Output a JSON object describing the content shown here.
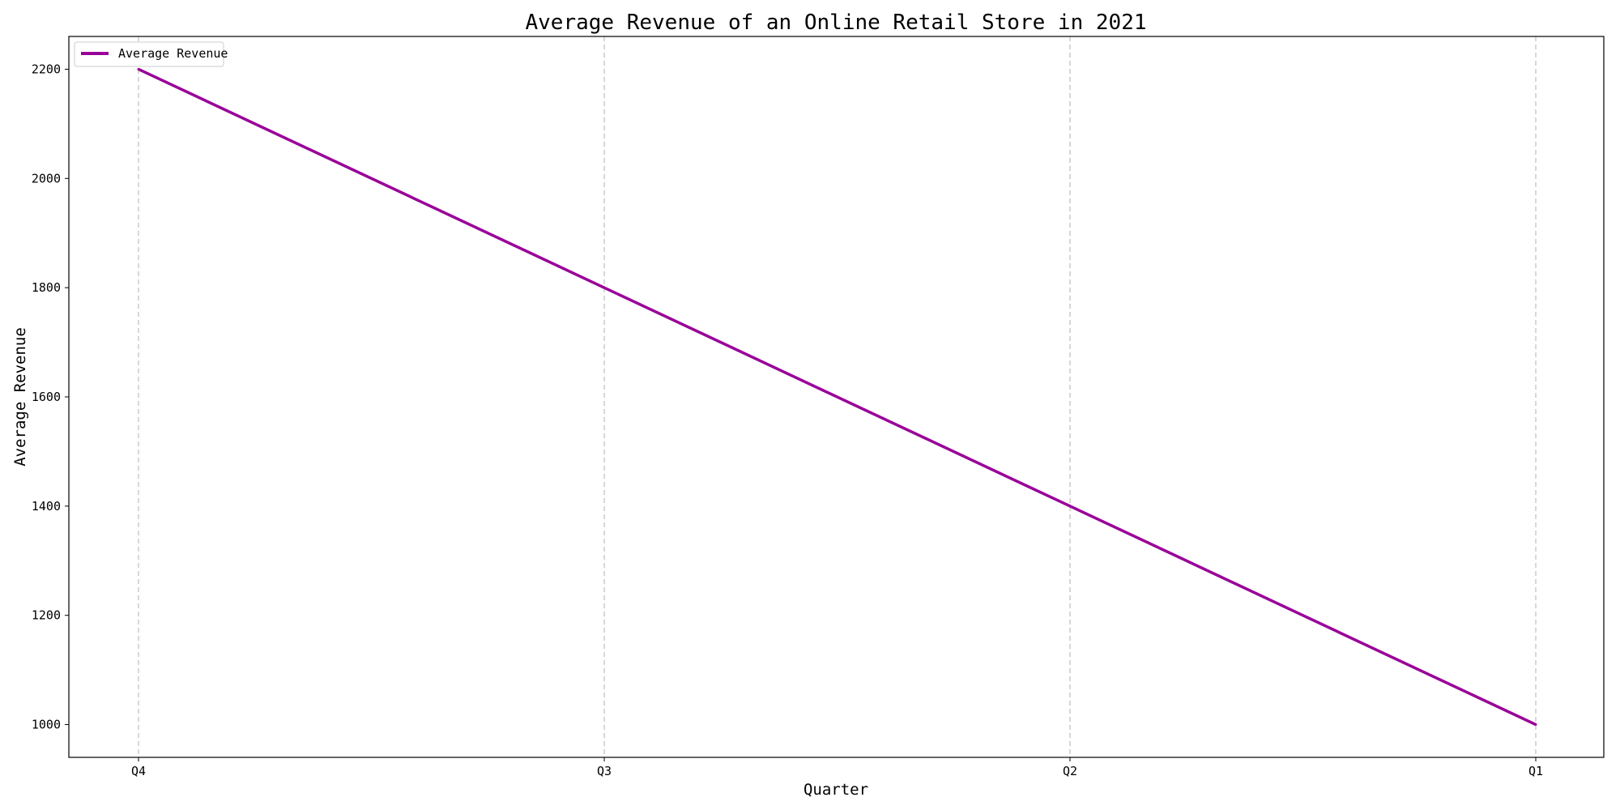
{
  "chart_data": {
    "type": "line",
    "title": "Average Revenue of an Online Retail Store in 2021",
    "xlabel": "Quarter",
    "ylabel": "Average Revenue",
    "categories": [
      "Q4",
      "Q3",
      "Q2",
      "Q1"
    ],
    "series": [
      {
        "name": "Average Revenue",
        "values": [
          2200,
          1800,
          1400,
          1000
        ],
        "color": "#990099"
      }
    ],
    "ylim": [
      940,
      2260
    ],
    "yticks": [
      1000,
      1200,
      1400,
      1600,
      1800,
      2000,
      2200
    ],
    "grid": "x-dashed",
    "legend": "top-left"
  }
}
